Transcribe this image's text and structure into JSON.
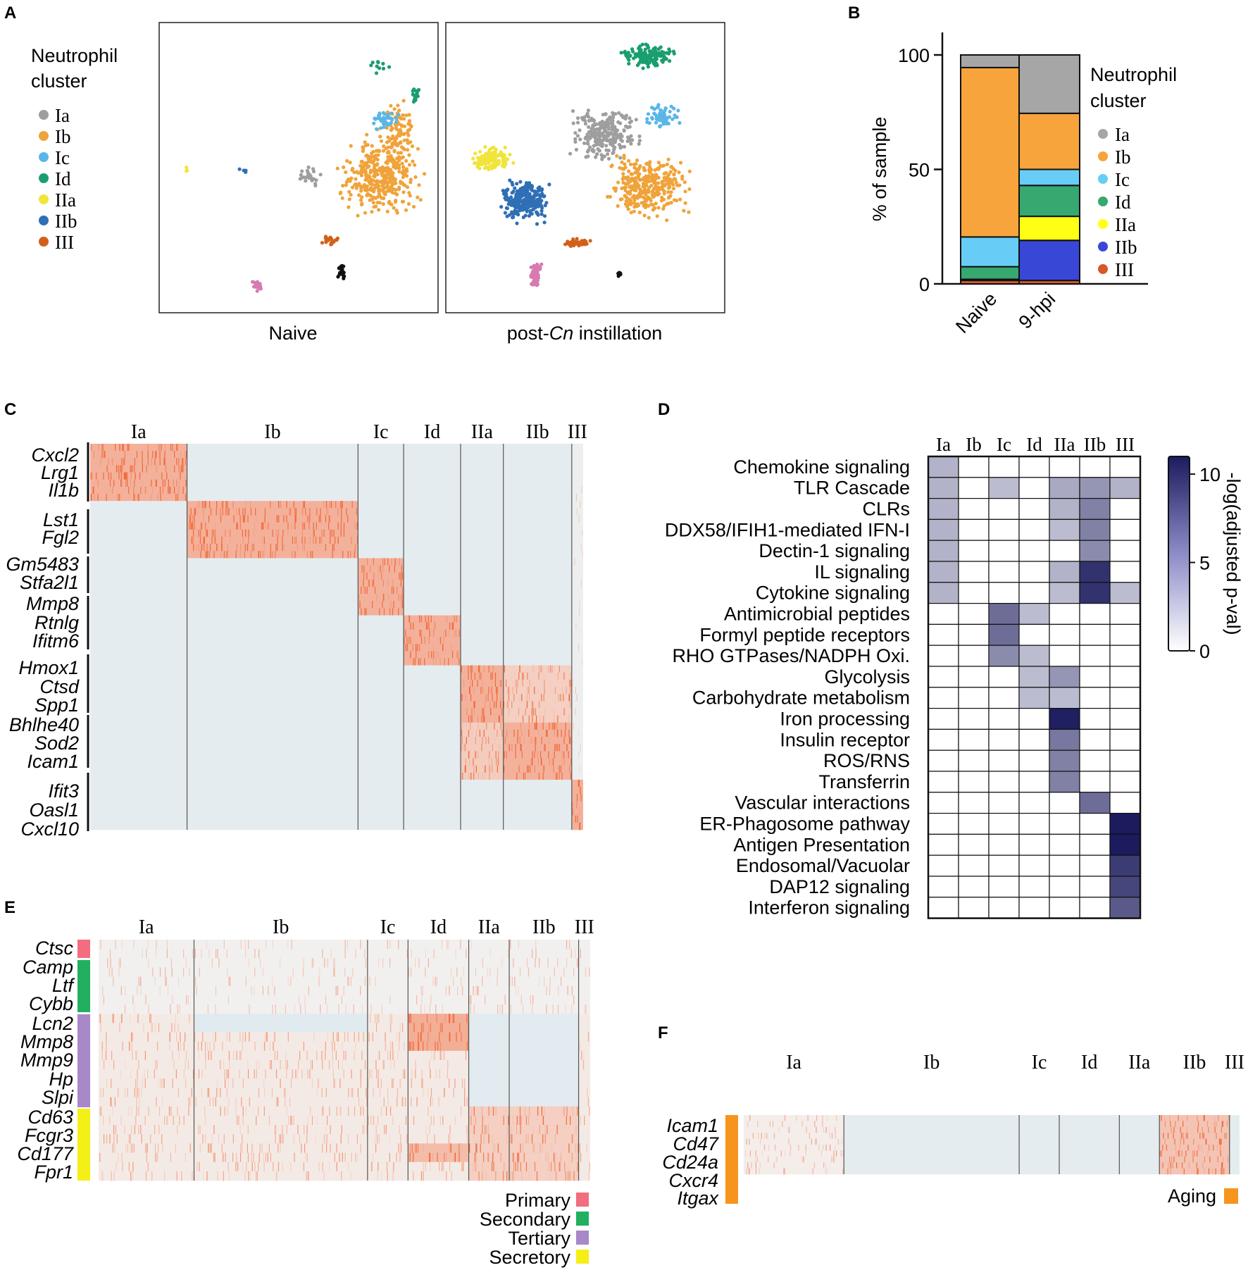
{
  "figure": {
    "panel_labels": [
      "A",
      "B",
      "C",
      "D",
      "E",
      "F"
    ]
  },
  "colors": {
    "Ia": "#9e9e9e",
    "Ib": "#f0a33a",
    "Ic": "#5ab6e8",
    "Id": "#1a9e6f",
    "IIa": "#f1e43a",
    "IIb": "#2f6fb5",
    "III": "#d2601a",
    "other_pink": "#d67ab0",
    "other_black": "#111111",
    "Ia_bar": "#a6a6a6",
    "Ib_bar": "#f7a43c",
    "Ic_bar": "#67cdf7",
    "Id_bar": "#36a870",
    "IIa_bar": "#ffff14",
    "IIb_bar": "#3847d6",
    "III_bar": "#d8582a",
    "heat_hi": "#f2693b",
    "heat_lo": "#b7dcef",
    "heat_mid": "#f4f1ef",
    "primary": "#f26d7d",
    "secondary": "#22b060",
    "tertiary": "#a888c8",
    "secretory": "#f4ef16",
    "aging": "#f7941d",
    "pval": "#1b1b5e"
  },
  "panelA": {
    "legend_title_1": "Neutrophil",
    "legend_title_2": "cluster",
    "clusters": [
      "Ia",
      "Ib",
      "Ic",
      "Id",
      "IIa",
      "IIb",
      "III"
    ],
    "plot_labels": [
      "Naive",
      "post-Cn instillation"
    ],
    "label_naive": "Naive",
    "label_post_pre": "post-",
    "label_post_it": "Cn",
    "label_post_post": " instillation"
  },
  "chart_data": [
    {
      "type": "bar",
      "panel": "B",
      "stacked": true,
      "categories": [
        "Naive",
        "9-hpi"
      ],
      "ylabel": "% of sample",
      "ylim": [
        0,
        100
      ],
      "yticks": [
        "0",
        "50",
        "100"
      ],
      "legend_title_1": "Neutrophil",
      "legend_title_2": "cluster",
      "series": [
        {
          "name": "III",
          "values": [
            1.5,
            1.5
          ]
        },
        {
          "name": "IIb",
          "values": [
            0.5,
            17.5
          ]
        },
        {
          "name": "IIa",
          "values": [
            0,
            10.5
          ]
        },
        {
          "name": "Id",
          "values": [
            5.5,
            13.5
          ]
        },
        {
          "name": "Ic",
          "values": [
            13,
            7
          ]
        },
        {
          "name": "Ib",
          "values": [
            74,
            24.5
          ]
        },
        {
          "name": "Ia",
          "values": [
            5.5,
            25.5
          ]
        }
      ]
    },
    {
      "type": "heatmap",
      "panel": "C",
      "columns": [
        "Ia",
        "Ib",
        "Ic",
        "Id",
        "IIa",
        "IIb",
        "III"
      ],
      "column_weights": [
        0.17,
        0.3,
        0.08,
        0.1,
        0.075,
        0.12,
        0.02
      ],
      "gene_labels": [
        "Cxcl2",
        "Lrg1",
        "Il1b",
        "Lst1",
        "Fgl2",
        "Gm5483",
        "Stfa2l1",
        "Mmp8",
        "Rtnlg",
        "Ifitm6",
        "Hmox1",
        "Ctsd",
        "Spp1",
        "Bhlhe40",
        "Sod2",
        "Icam1",
        "Ifit3",
        "Oasl1",
        "Cxcl10"
      ],
      "gene_groups": [
        [
          0,
          3
        ],
        [
          3,
          5
        ],
        [
          5,
          7
        ],
        [
          7,
          10
        ],
        [
          10,
          13
        ],
        [
          13,
          16
        ],
        [
          16,
          19
        ]
      ],
      "group_high_column": [
        0,
        1,
        2,
        3,
        4,
        5,
        6
      ]
    },
    {
      "type": "heatmap",
      "panel": "D",
      "columns": [
        "Ia",
        "Ib",
        "Ic",
        "Id",
        "IIa",
        "IIb",
        "III"
      ],
      "rows": [
        "Chemokine signaling",
        "TLR Cascade",
        "CLRs",
        "DDX58/IFIH1-mediated IFN-I",
        "Dectin-1 signaling",
        "IL signaling",
        "Cytokine signaling",
        "Antimicrobial peptides",
        "Formyl peptide receptors",
        "RHO GTPases/NADPH Oxi.",
        "Glycolysis",
        "Carbohydrate metabolism",
        "Iron processing",
        "Insulin receptor",
        "ROS/RNS",
        "Transferrin",
        "Vascular interactions",
        "ER-Phagosome pathway",
        "Antigen Presentation",
        "Endosomal/Vacuolar",
        "DAP12 signaling",
        "Interferon signaling"
      ],
      "values": [
        [
          2.5,
          0,
          0,
          0,
          0,
          0,
          0
        ],
        [
          2.5,
          0,
          2,
          0,
          3,
          4,
          2.5
        ],
        [
          2.5,
          0,
          0,
          0,
          2.5,
          5,
          0
        ],
        [
          2.5,
          0,
          0,
          0,
          2,
          5,
          0
        ],
        [
          2.5,
          0,
          0,
          0,
          0,
          4.5,
          0
        ],
        [
          2.5,
          0,
          0,
          0,
          2.5,
          9,
          0
        ],
        [
          2.5,
          0,
          0,
          0,
          2,
          9,
          2
        ],
        [
          0,
          0,
          6,
          2,
          0,
          0,
          0
        ],
        [
          0,
          0,
          6,
          0,
          0,
          0,
          0
        ],
        [
          0,
          0,
          4.5,
          2,
          0,
          0,
          0
        ],
        [
          0,
          0,
          0,
          2,
          4,
          0,
          0
        ],
        [
          0,
          0,
          0,
          2,
          2,
          0,
          0
        ],
        [
          0,
          0,
          0,
          0,
          10,
          0,
          0
        ],
        [
          0,
          0,
          0,
          0,
          5.5,
          0,
          0
        ],
        [
          0,
          0,
          0,
          0,
          5,
          0,
          0
        ],
        [
          0,
          0,
          0,
          0,
          5,
          0,
          0
        ],
        [
          0,
          0,
          0,
          0,
          0,
          6,
          0
        ],
        [
          0,
          0,
          0,
          0,
          0,
          0,
          11
        ],
        [
          0,
          0,
          0,
          0,
          0,
          0,
          11
        ],
        [
          0,
          0,
          0,
          0,
          0,
          0,
          8.5
        ],
        [
          0,
          0,
          0,
          0,
          0,
          0,
          8
        ],
        [
          0,
          0,
          0,
          0,
          0,
          0,
          7
        ]
      ],
      "colorbar_label": "-log(adjusted p-val)",
      "colorbar_ticks": [
        "0",
        "5",
        "10"
      ],
      "vmax": 11
    },
    {
      "type": "heatmap",
      "panel": "E",
      "columns": [
        "Ia",
        "Ib",
        "Ic",
        "Id",
        "IIa",
        "IIb",
        "III"
      ],
      "column_weights": [
        0.165,
        0.3,
        0.07,
        0.105,
        0.07,
        0.12,
        0.02
      ],
      "gene_labels": [
        "Ctsc",
        "Camp",
        "Ltf",
        "Cybb",
        "Lcn2",
        "Mmp8",
        "Mmp9",
        "Hp",
        "Slpi",
        "Cd63",
        "Fcgr3",
        "Cd177",
        "Fpr1"
      ],
      "granule_categories": [
        "Primary",
        "Secondary",
        "Secondary",
        "Secondary",
        "Tertiary",
        "Tertiary",
        "Tertiary",
        "Tertiary",
        "Tertiary",
        "Secretory",
        "Secretory",
        "Secretory",
        "Secretory"
      ],
      "legend": [
        "Primary",
        "Secondary",
        "Tertiary",
        "Secretory"
      ]
    },
    {
      "type": "heatmap",
      "panel": "F",
      "columns": [
        "Ia",
        "Ib",
        "Ic",
        "Id",
        "IIa",
        "IIb",
        "III"
      ],
      "column_weights": [
        0.2,
        0.35,
        0.08,
        0.12,
        0.08,
        0.14,
        0.02
      ],
      "gene_labels": [
        "Icam1",
        "Cd47",
        "Cd24a",
        "Cxcr4",
        "Itgax"
      ],
      "legend": "Aging"
    }
  ]
}
